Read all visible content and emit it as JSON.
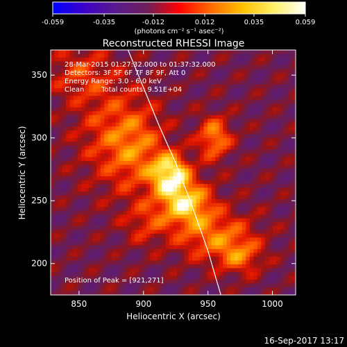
{
  "chart_data": {
    "type": "heatmap",
    "title": "Reconstructed RHESSI Image",
    "xlabel": "Heliocentric X (arcsec)",
    "ylabel": "Heliocentric Y (arcsec)",
    "xlim": [
      828,
      1018
    ],
    "ylim": [
      175,
      370
    ],
    "x_ticks": [
      850,
      900,
      950,
      1000
    ],
    "y_ticks": [
      200,
      250,
      300,
      350
    ],
    "colorbar": {
      "min": -0.059,
      "max": 0.059,
      "ticks": [
        "-0.059",
        "-0.035",
        "-0.012",
        "0.012",
        "0.035",
        "0.059"
      ],
      "tick_values": [
        -0.059,
        -0.035,
        -0.012,
        0.012,
        0.035,
        0.059
      ],
      "units_label": "(photons cm⁻² s⁻¹ asec⁻²)",
      "colors": [
        "#0000ff",
        "#3d00c8",
        "#5a1a8c",
        "#6d1f5a",
        "#ff0000",
        "#ff6a00",
        "#ffc000",
        "#fff066",
        "#ffffff"
      ]
    },
    "annotations": {
      "time_range": "28-Mar-2015 01:27:32.000 to 01:37:32.000",
      "detectors": "Detectors: 3F 5F 6F 7F 8F 9F, Att 0",
      "energy": "Energy Range: 3.0 - 6.0 keV",
      "clean": "Clean",
      "total_counts": "Total counts: 9.51E+04",
      "peak": "Position of Peak = [921,271]"
    },
    "peak": [
      921,
      271
    ],
    "limb_curve": [
      [
        888,
        370
      ],
      [
        900,
        340
      ],
      [
        912,
        310
      ],
      [
        925,
        280
      ],
      [
        938,
        245
      ],
      [
        950,
        210
      ],
      [
        960,
        175
      ]
    ],
    "sources": [
      {
        "x": 921,
        "y": 271,
        "sx": 10,
        "sy": 11,
        "amp": 1.0
      },
      {
        "x": 933,
        "y": 248,
        "sx": 14,
        "sy": 12,
        "amp": 0.82
      },
      {
        "x": 955,
        "y": 300,
        "sx": 9,
        "sy": 12,
        "amp": 0.62
      },
      {
        "x": 955,
        "y": 222,
        "sx": 22,
        "sy": 14,
        "amp": 0.52
      },
      {
        "x": 975,
        "y": 205,
        "sx": 12,
        "sy": 10,
        "amp": 0.42
      },
      {
        "x": 895,
        "y": 292,
        "sx": 16,
        "sy": 26,
        "amp": 0.48
      },
      {
        "x": 870,
        "y": 305,
        "sx": 18,
        "sy": 30,
        "amp": 0.3
      },
      {
        "x": 850,
        "y": 352,
        "sx": 18,
        "sy": 16,
        "amp": 0.32
      },
      {
        "x": 902,
        "y": 232,
        "sx": 12,
        "sy": 12,
        "amp": 0.3
      }
    ]
  },
  "footer": {
    "timestamp": "16-Sep-2017 13:17"
  }
}
